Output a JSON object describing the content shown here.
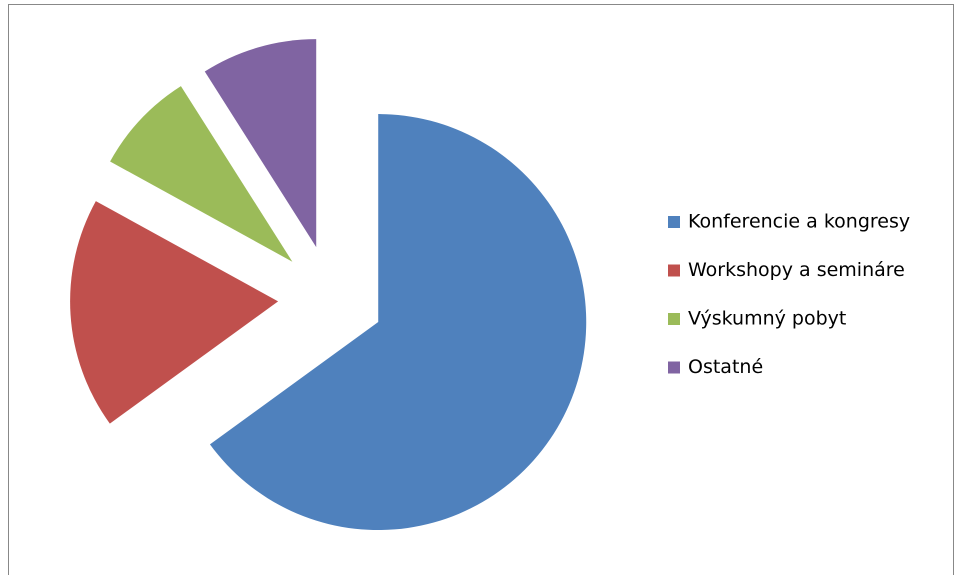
{
  "chart_data": {
    "type": "pie",
    "categories": [
      "Konferencie a kongresy",
      "Workshopy a semináre",
      "Výskumný pobyt",
      "Ostatné"
    ],
    "values": [
      65,
      18,
      8,
      9
    ],
    "colors": [
      "#4f81bd",
      "#c0504d",
      "#9bbb59",
      "#8064a2"
    ],
    "exploded": true,
    "legend": "right"
  }
}
